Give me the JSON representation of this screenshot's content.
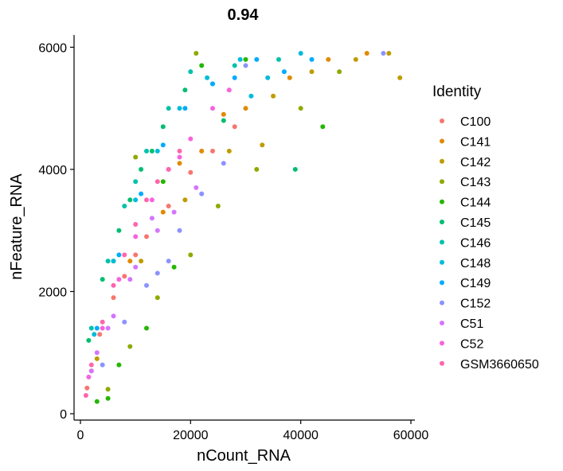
{
  "chart_data": {
    "type": "scatter",
    "title": "0.94",
    "xlabel": "nCount_RNA",
    "ylabel": "nFeature_RNA",
    "xlim": [
      0,
      60000
    ],
    "ylim": [
      0,
      6200
    ],
    "xticks": [
      0,
      20000,
      40000,
      60000
    ],
    "xtick_labels": [
      "0",
      "20000",
      "40000",
      "60000"
    ],
    "yticks": [
      0,
      2000,
      4000,
      6000
    ],
    "ytick_labels": [
      "0",
      "2000",
      "4000",
      "6000"
    ],
    "grid": false,
    "legend_title": "Identity",
    "legend_position": "right",
    "series": [
      {
        "name": "C100",
        "color": "#F8766D",
        "points": [
          [
            1200,
            420
          ],
          [
            3500,
            1300
          ],
          [
            8000,
            2250
          ],
          [
            12000,
            2900
          ],
          [
            16000,
            3400
          ],
          [
            20000,
            3950
          ],
          [
            24000,
            4300
          ],
          [
            28000,
            4700
          ],
          [
            6000,
            1900
          ],
          [
            10000,
            2600
          ]
        ]
      },
      {
        "name": "C141",
        "color": "#E18A00",
        "points": [
          [
            2000,
            700
          ],
          [
            9000,
            2500
          ],
          [
            15000,
            3300
          ],
          [
            22000,
            4300
          ],
          [
            30000,
            5000
          ],
          [
            38000,
            5500
          ],
          [
            45000,
            5800
          ],
          [
            52000,
            5900
          ],
          [
            26000,
            4900
          ],
          [
            18000,
            4100
          ]
        ]
      },
      {
        "name": "C142",
        "color": "#BE9C00",
        "points": [
          [
            3000,
            900
          ],
          [
            11000,
            2500
          ],
          [
            19000,
            3500
          ],
          [
            27000,
            4300
          ],
          [
            35000,
            5200
          ],
          [
            42000,
            5600
          ],
          [
            50000,
            5800
          ],
          [
            56000,
            5900
          ],
          [
            58000,
            5500
          ],
          [
            33000,
            4400
          ]
        ]
      },
      {
        "name": "C143",
        "color": "#8CAB00",
        "points": [
          [
            5000,
            400
          ],
          [
            9000,
            1100
          ],
          [
            14000,
            1900
          ],
          [
            20000,
            2600
          ],
          [
            25000,
            3400
          ],
          [
            32000,
            4000
          ],
          [
            40000,
            5000
          ],
          [
            47000,
            5600
          ],
          [
            21000,
            5900
          ],
          [
            10000,
            4200
          ]
        ]
      },
      {
        "name": "C144",
        "color": "#24B700",
        "points": [
          [
            3000,
            200
          ],
          [
            5000,
            250
          ],
          [
            7000,
            800
          ],
          [
            12000,
            1400
          ],
          [
            17000,
            2400
          ],
          [
            30000,
            5800
          ],
          [
            22000,
            5700
          ],
          [
            44000,
            4700
          ],
          [
            6000,
            2500
          ],
          [
            15000,
            3800
          ]
        ]
      },
      {
        "name": "C145",
        "color": "#00BE70",
        "points": [
          [
            1500,
            1200
          ],
          [
            4000,
            2200
          ],
          [
            7000,
            3000
          ],
          [
            11000,
            4000
          ],
          [
            15000,
            4700
          ],
          [
            19000,
            5300
          ],
          [
            39000,
            4000
          ],
          [
            26000,
            4800
          ],
          [
            9000,
            3500
          ],
          [
            13000,
            4300
          ]
        ]
      },
      {
        "name": "C146",
        "color": "#00C1AB",
        "points": [
          [
            2000,
            1400
          ],
          [
            5000,
            2500
          ],
          [
            8000,
            3400
          ],
          [
            12000,
            4300
          ],
          [
            16000,
            5000
          ],
          [
            20000,
            5600
          ],
          [
            28000,
            5700
          ],
          [
            36000,
            5800
          ],
          [
            10000,
            3800
          ],
          [
            24000,
            5400
          ]
        ]
      },
      {
        "name": "C148",
        "color": "#00BBDA",
        "points": [
          [
            2500,
            1300
          ],
          [
            6000,
            2500
          ],
          [
            10000,
            3500
          ],
          [
            14000,
            4300
          ],
          [
            18000,
            5000
          ],
          [
            23000,
            5500
          ],
          [
            29000,
            5800
          ],
          [
            34000,
            5500
          ],
          [
            31000,
            5200
          ],
          [
            40000,
            5900
          ]
        ]
      },
      {
        "name": "C149",
        "color": "#00ACFC",
        "points": [
          [
            3000,
            1400
          ],
          [
            7000,
            2600
          ],
          [
            11000,
            3600
          ],
          [
            15000,
            4400
          ],
          [
            19000,
            5000
          ],
          [
            24000,
            5400
          ],
          [
            28000,
            5500
          ],
          [
            32000,
            5800
          ],
          [
            37000,
            5600
          ],
          [
            42000,
            5800
          ]
        ]
      },
      {
        "name": "C152",
        "color": "#8B93FF",
        "points": [
          [
            4000,
            800
          ],
          [
            8000,
            1500
          ],
          [
            12000,
            2100
          ],
          [
            16000,
            2500
          ],
          [
            18000,
            3000
          ],
          [
            22000,
            3600
          ],
          [
            26000,
            4100
          ],
          [
            30000,
            5700
          ],
          [
            55000,
            5900
          ],
          [
            14000,
            2300
          ]
        ]
      },
      {
        "name": "C51",
        "color": "#D575FE",
        "points": [
          [
            2000,
            700
          ],
          [
            6000,
            1600
          ],
          [
            10000,
            2400
          ],
          [
            14000,
            3000
          ],
          [
            17000,
            3300
          ],
          [
            21000,
            3700
          ],
          [
            13000,
            3200
          ],
          [
            9000,
            2200
          ],
          [
            5000,
            1400
          ],
          [
            3000,
            1000
          ]
        ]
      },
      {
        "name": "C52",
        "color": "#F962DD",
        "points": [
          [
            1500,
            600
          ],
          [
            4000,
            1400
          ],
          [
            7000,
            2200
          ],
          [
            10000,
            2900
          ],
          [
            13000,
            3500
          ],
          [
            16000,
            4000
          ],
          [
            20000,
            4500
          ],
          [
            24000,
            5000
          ],
          [
            27000,
            5300
          ],
          [
            18000,
            4200
          ]
        ]
      },
      {
        "name": "GSM3660650",
        "color": "#FF65AC",
        "points": [
          [
            1000,
            300
          ],
          [
            2000,
            800
          ],
          [
            4000,
            1500
          ],
          [
            6000,
            2100
          ],
          [
            8000,
            2600
          ],
          [
            10000,
            3100
          ],
          [
            12000,
            3500
          ],
          [
            14000,
            3800
          ],
          [
            16000,
            4000
          ],
          [
            18000,
            4300
          ]
        ]
      }
    ]
  }
}
